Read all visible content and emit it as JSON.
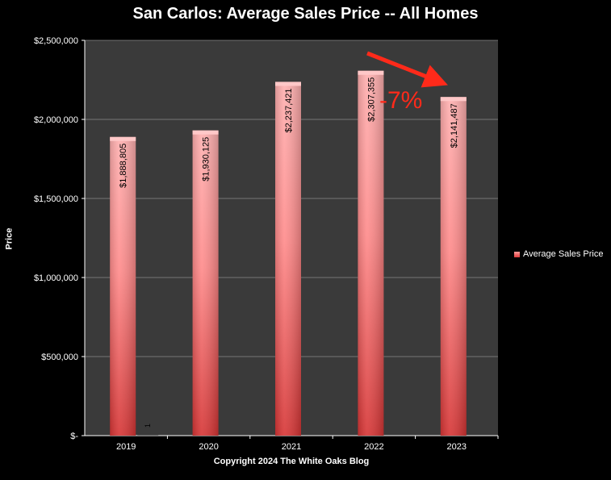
{
  "chart_data": {
    "type": "bar",
    "title": "San Carlos: Average Sales Price -- All Homes",
    "xlabel": "Copyright 2024 The White  Oaks Blog",
    "ylabel": "Price",
    "categories": [
      "2019",
      "2020",
      "2021",
      "2022",
      "2023"
    ],
    "series": [
      {
        "name": "Average Sales Price",
        "values": [
          1888805,
          1930125,
          2237421,
          2307355,
          2141487
        ],
        "labels": [
          "$1,888,805",
          "$1,930,125",
          "$2,237,421",
          "$2,307,355",
          "$2,141,487"
        ]
      },
      {
        "name": "",
        "values": [
          1,
          null,
          null,
          null,
          null
        ],
        "labels": [
          "1",
          "",
          "",
          "",
          ""
        ]
      }
    ],
    "ylim": [
      0,
      2500000
    ],
    "yticks": [
      0,
      500000,
      1000000,
      1500000,
      2000000,
      2500000
    ],
    "ytick_labels": [
      "$-",
      "$500,000",
      "$1,000,000",
      "$1,500,000",
      "$2,000,000",
      "$2,500,000"
    ],
    "grid": true,
    "legend": "right",
    "annotation": {
      "text": "-7%",
      "color": "#ff2a1a"
    },
    "colors": {
      "bar_top": "#ffb0b0",
      "bar_bottom": "#dd3333",
      "plot_bg": "#3a3a3a",
      "grid": "#8a8a8a"
    }
  }
}
